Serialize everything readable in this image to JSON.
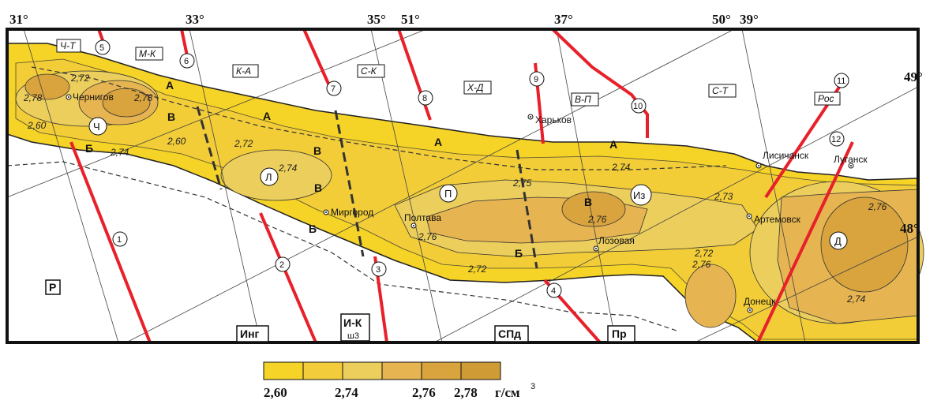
{
  "map": {
    "longitudes_top": [
      "31°",
      "33°",
      "35°",
      "37°",
      "39°"
    ],
    "latitudes_top": [
      "51°",
      "50°"
    ],
    "latitudes_right": [
      "49°",
      "48°"
    ],
    "region_labels": [
      "Ч-Т",
      "М-К",
      "К-А",
      "С-К",
      "Х-Д",
      "В-П",
      "С-Т",
      "Рос"
    ],
    "fault_numbers": [
      "1",
      "2",
      "3",
      "4",
      "5",
      "6",
      "7",
      "8",
      "9",
      "10",
      "11",
      "12"
    ],
    "zone_letters": {
      "A": "А",
      "B": "Б",
      "V": "В"
    },
    "circle_labels": [
      "Ч",
      "Л",
      "П",
      "Из",
      "Д"
    ],
    "cities": [
      "Чернигов",
      "Харьков",
      "Миргород",
      "Полтава",
      "Лозовая",
      "Лисичанск",
      "Луганск",
      "Артемовск",
      "Донецк"
    ],
    "contour_values": {
      "c272": "2,72",
      "c278": "2,78",
      "c260": "2,60",
      "c274": "2,74",
      "c275": "2,75",
      "c276": "2,76",
      "c273": "2,73"
    },
    "block_labels": {
      "r": "Р",
      "ing": "Инг",
      "ik": "И-К",
      "ik_sub": "ш3",
      "spd": "СПд",
      "pr": "Пр"
    },
    "colors": {
      "c260": "#f5d327",
      "c272": "#f2cc3b",
      "c274": "#ecce5c",
      "c276": "#e6b451",
      "c278": "#d9a43d",
      "c280": "#cf9b35",
      "fault": "#e8202a"
    }
  },
  "legend": {
    "swatches": [
      "#f5d327",
      "#f2cc3b",
      "#ecce5c",
      "#e6b451",
      "#d9a43d",
      "#cf9b35"
    ],
    "labels": [
      "2,60",
      "2,74",
      "2,76",
      "2,78"
    ],
    "unit": "г/см",
    "unit_sup": "3"
  }
}
